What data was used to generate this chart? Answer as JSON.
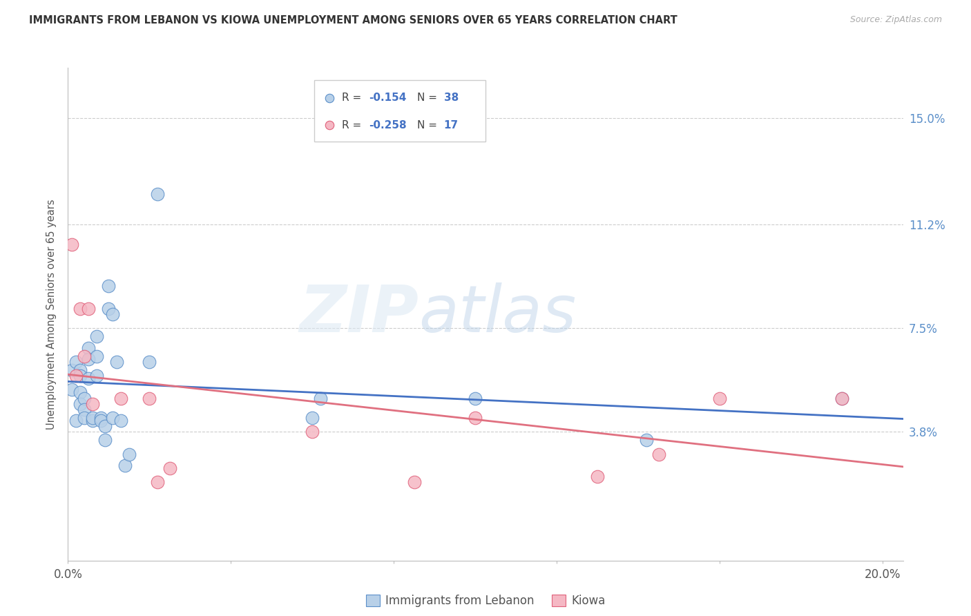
{
  "title": "IMMIGRANTS FROM LEBANON VS KIOWA UNEMPLOYMENT AMONG SENIORS OVER 65 YEARS CORRELATION CHART",
  "source": "Source: ZipAtlas.com",
  "ylabel": "Unemployment Among Seniors over 65 years",
  "legend_label1": "Immigrants from Lebanon",
  "legend_label2": "Kiowa",
  "r1": -0.154,
  "n1": 38,
  "r2": -0.258,
  "n2": 17,
  "xmin": 0.0,
  "xmax": 0.205,
  "ymin": -0.008,
  "ymax": 0.168,
  "ytick_vals": [
    0.038,
    0.075,
    0.112,
    0.15
  ],
  "ytick_labels": [
    "3.8%",
    "7.5%",
    "11.2%",
    "15.0%"
  ],
  "xtick_vals": [
    0.0,
    0.04,
    0.08,
    0.12,
    0.16,
    0.2
  ],
  "xtick_labels": [
    "0.0%",
    "",
    "",
    "",
    "",
    "20.0%"
  ],
  "color_blue_fill": "#b8d0e8",
  "color_blue_edge": "#5b8fc9",
  "color_pink_fill": "#f5b8c4",
  "color_pink_edge": "#e0607a",
  "line_blue": "#4472c4",
  "line_pink": "#e07080",
  "watermark_zip": "ZIP",
  "watermark_atlas": "atlas",
  "blue_x": [
    0.001,
    0.001,
    0.002,
    0.002,
    0.003,
    0.003,
    0.003,
    0.003,
    0.004,
    0.004,
    0.004,
    0.005,
    0.005,
    0.005,
    0.006,
    0.006,
    0.007,
    0.007,
    0.007,
    0.008,
    0.008,
    0.009,
    0.009,
    0.01,
    0.01,
    0.011,
    0.011,
    0.012,
    0.013,
    0.014,
    0.015,
    0.02,
    0.022,
    0.06,
    0.062,
    0.1,
    0.142,
    0.19
  ],
  "blue_y": [
    0.053,
    0.06,
    0.063,
    0.042,
    0.06,
    0.058,
    0.052,
    0.048,
    0.05,
    0.046,
    0.043,
    0.068,
    0.064,
    0.057,
    0.042,
    0.043,
    0.072,
    0.065,
    0.058,
    0.043,
    0.042,
    0.04,
    0.035,
    0.09,
    0.082,
    0.08,
    0.043,
    0.063,
    0.042,
    0.026,
    0.03,
    0.063,
    0.123,
    0.043,
    0.05,
    0.05,
    0.035,
    0.05
  ],
  "pink_x": [
    0.001,
    0.002,
    0.003,
    0.004,
    0.005,
    0.006,
    0.013,
    0.02,
    0.022,
    0.025,
    0.06,
    0.085,
    0.1,
    0.13,
    0.145,
    0.16,
    0.19
  ],
  "pink_y": [
    0.105,
    0.058,
    0.082,
    0.065,
    0.082,
    0.048,
    0.05,
    0.05,
    0.02,
    0.025,
    0.038,
    0.02,
    0.043,
    0.022,
    0.03,
    0.05,
    0.05
  ]
}
